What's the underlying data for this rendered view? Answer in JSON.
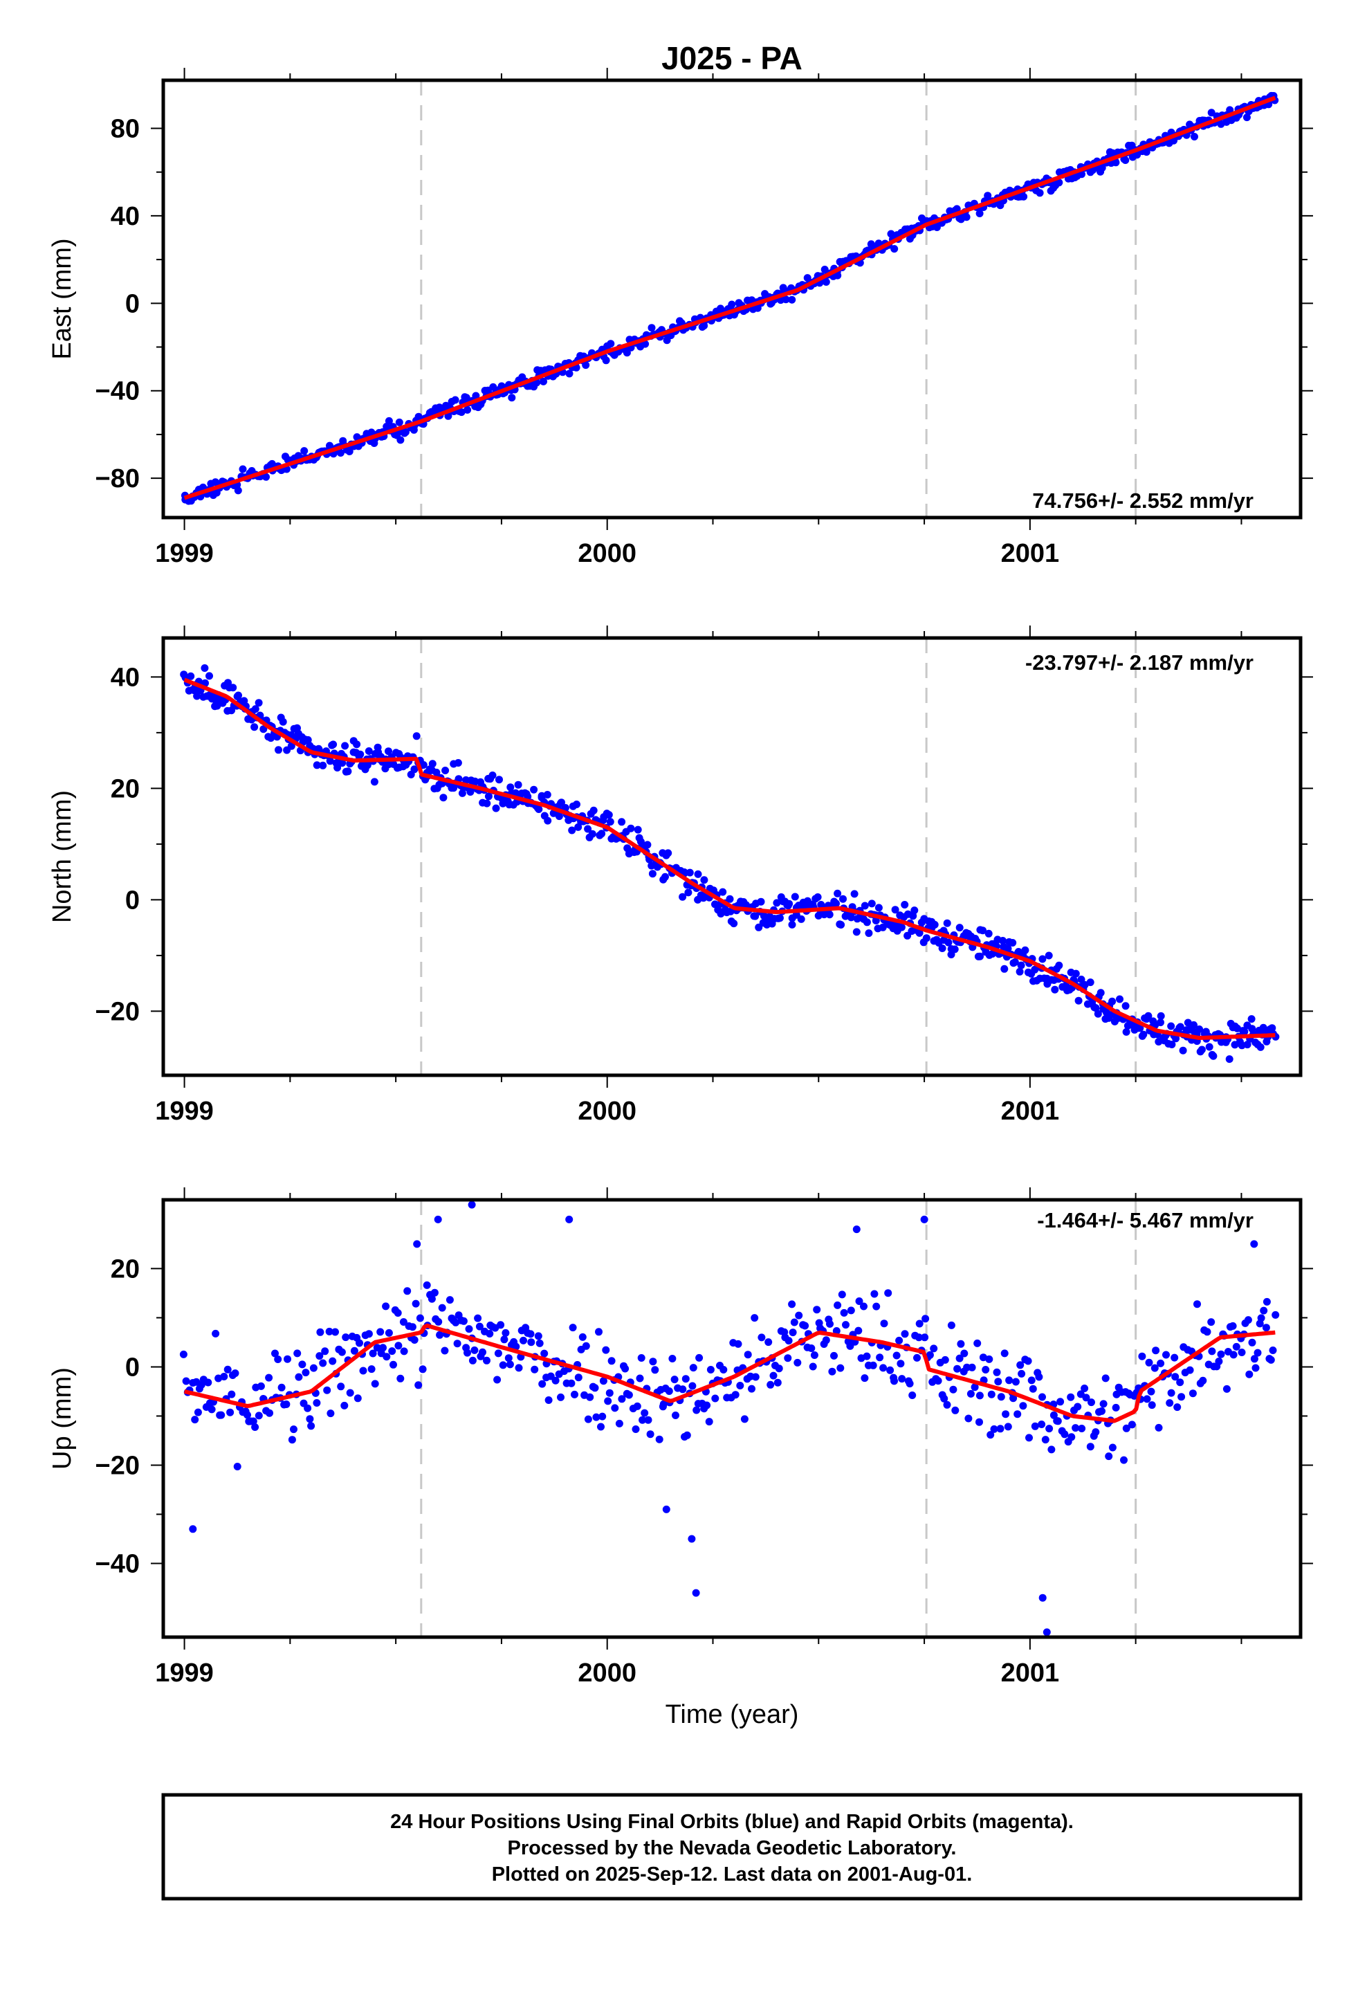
{
  "title": "J025 - PA",
  "x_axis_label": "Time (year)",
  "footer": {
    "line1": "24 Hour Positions Using Final Orbits (blue) and Rapid Orbits (magenta).",
    "line2": "Processed by the Nevada Geodetic Laboratory.",
    "line3": "Plotted on 2025-Sep-12. Last data on 2001-Aug-01."
  },
  "colors": {
    "final_orbit_points": "#0000ff",
    "model_fit": "#ff0000",
    "equipment_change_lines": "#c8c8c8",
    "frame": "#000000"
  },
  "chart_data": [
    {
      "type": "scatter",
      "panel": "east",
      "ylabel": "East (mm)",
      "xlabel": "",
      "xlim": [
        1998.95,
        2001.64
      ],
      "ylim": [
        -98,
        102
      ],
      "x_ticks": [
        "1999",
        "2000",
        "2001"
      ],
      "y_ticks": [
        "80",
        "40",
        "0",
        "−40",
        "−80"
      ],
      "y_tick_values": [
        80,
        40,
        0,
        -40,
        -80
      ],
      "rate_label": "74.756+/- 2.552 mm/yr",
      "rate_position": "bottom-right",
      "grid": false,
      "vertical_lines_x": [
        1999.56,
        2000.755,
        2001.25
      ],
      "model_fit": [
        [
          1999.0,
          -89
        ],
        [
          1999.56,
          -54
        ],
        [
          2000.0,
          -22
        ],
        [
          2000.45,
          6
        ],
        [
          2000.755,
          36
        ],
        [
          2001.25,
          70
        ],
        [
          2001.58,
          94
        ]
      ],
      "series_trend": {
        "start": [
          1999.0,
          -89
        ],
        "end": [
          2001.58,
          94
        ],
        "noise_mm": 2.5,
        "n": 640
      }
    },
    {
      "type": "scatter",
      "panel": "north",
      "ylabel": "North (mm)",
      "xlabel": "",
      "xlim": [
        1998.95,
        2001.64
      ],
      "ylim": [
        -31.5,
        47
      ],
      "x_ticks": [
        "1999",
        "2000",
        "2001"
      ],
      "y_ticks": [
        "40",
        "20",
        "0",
        "−20"
      ],
      "y_tick_values": [
        40,
        20,
        0,
        -20
      ],
      "rate_label": "-23.797+/- 2.187 mm/yr",
      "rate_position": "top-right",
      "grid": false,
      "vertical_lines_x": [
        1999.56,
        2000.755,
        2001.25
      ],
      "model_fit": [
        [
          1999.0,
          39.5
        ],
        [
          1999.1,
          36.5
        ],
        [
          1999.2,
          31
        ],
        [
          1999.3,
          26.5
        ],
        [
          1999.4,
          25
        ],
        [
          1999.55,
          25.3
        ],
        [
          1999.56,
          22.5
        ],
        [
          1999.7,
          20
        ],
        [
          1999.85,
          17
        ],
        [
          2000.0,
          13
        ],
        [
          2000.1,
          8
        ],
        [
          2000.2,
          3
        ],
        [
          2000.3,
          -1.5
        ],
        [
          2000.4,
          -2.2
        ],
        [
          2000.55,
          -1.5
        ],
        [
          2000.7,
          -4
        ],
        [
          2000.755,
          -5.5
        ],
        [
          2000.9,
          -8.5
        ],
        [
          2001.0,
          -11
        ],
        [
          2001.1,
          -15
        ],
        [
          2001.2,
          -20
        ],
        [
          2001.3,
          -23.5
        ],
        [
          2001.4,
          -24.8
        ],
        [
          2001.58,
          -24.3
        ]
      ],
      "noise_mm": 2.0,
      "n": 720
    },
    {
      "type": "scatter",
      "panel": "up",
      "ylabel": "Up (mm)",
      "xlabel": "Time (year)",
      "xlim": [
        1998.95,
        2001.64
      ],
      "ylim": [
        -55,
        34
      ],
      "x_ticks": [
        "1999",
        "2000",
        "2001"
      ],
      "y_ticks": [
        "20",
        "0",
        "−20",
        "−40"
      ],
      "y_tick_values": [
        20,
        0,
        -20,
        -40
      ],
      "rate_label": "-1.464+/- 5.467 mm/yr",
      "rate_position": "top-right",
      "grid": false,
      "vertical_lines_x": [
        1999.56,
        2000.755,
        2001.25
      ],
      "model_fit": [
        [
          1999.0,
          -5
        ],
        [
          1999.15,
          -8
        ],
        [
          1999.3,
          -5
        ],
        [
          1999.45,
          5
        ],
        [
          1999.56,
          7
        ],
        [
          1999.57,
          8.5
        ],
        [
          1999.75,
          4
        ],
        [
          2000.0,
          -2
        ],
        [
          2000.15,
          -7
        ],
        [
          2000.3,
          -2
        ],
        [
          2000.5,
          7
        ],
        [
          2000.65,
          5
        ],
        [
          2000.75,
          3
        ],
        [
          2000.76,
          -0.5
        ],
        [
          2000.95,
          -5
        ],
        [
          2001.1,
          -10
        ],
        [
          2001.2,
          -11
        ],
        [
          2001.25,
          -9
        ],
        [
          2001.26,
          -5
        ],
        [
          2001.45,
          6
        ],
        [
          2001.58,
          7
        ]
      ],
      "noise_mm": 7.0,
      "n": 560,
      "outliers": [
        [
          1999.02,
          -33
        ],
        [
          1999.55,
          25
        ],
        [
          1999.6,
          30
        ],
        [
          1999.68,
          33
        ],
        [
          1999.91,
          30
        ],
        [
          2000.14,
          -29
        ],
        [
          2000.2,
          -35
        ],
        [
          2000.21,
          -46
        ],
        [
          2000.59,
          28
        ],
        [
          2000.75,
          30
        ],
        [
          2001.03,
          -47
        ],
        [
          2001.04,
          -54
        ],
        [
          2001.53,
          25
        ]
      ]
    }
  ]
}
